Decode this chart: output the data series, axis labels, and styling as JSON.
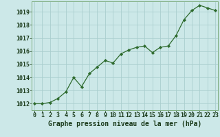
{
  "x": [
    0,
    1,
    2,
    3,
    4,
    5,
    6,
    7,
    8,
    9,
    10,
    11,
    12,
    13,
    14,
    15,
    16,
    17,
    18,
    19,
    20,
    21,
    22,
    23
  ],
  "y": [
    1012.0,
    1012.0,
    1012.1,
    1012.4,
    1012.9,
    1014.0,
    1013.3,
    1014.3,
    1014.8,
    1015.3,
    1015.1,
    1015.8,
    1016.1,
    1016.3,
    1016.4,
    1015.9,
    1016.3,
    1016.4,
    1017.2,
    1018.4,
    1019.1,
    1019.5,
    1019.3,
    1019.1
  ],
  "line_color": "#2d6a2d",
  "marker_color": "#2d6a2d",
  "bg_color": "#cce8e8",
  "grid_color": "#aacece",
  "title": "Graphe pression niveau de la mer (hPa)",
  "ylabel_ticks": [
    1012,
    1013,
    1014,
    1015,
    1016,
    1017,
    1018,
    1019
  ],
  "xlabel_ticks": [
    0,
    1,
    2,
    3,
    4,
    5,
    6,
    7,
    8,
    9,
    10,
    11,
    12,
    13,
    14,
    15,
    16,
    17,
    18,
    19,
    20,
    21,
    22,
    23
  ],
  "ylim": [
    1011.5,
    1019.8
  ],
  "xlim": [
    -0.3,
    23.3
  ],
  "title_fontsize": 7,
  "tick_fontsize": 6,
  "title_color": "#1a3a1a",
  "tick_color": "#1a3a1a",
  "axis_bg": "#cce8e8",
  "spine_color": "#7aaa7a"
}
